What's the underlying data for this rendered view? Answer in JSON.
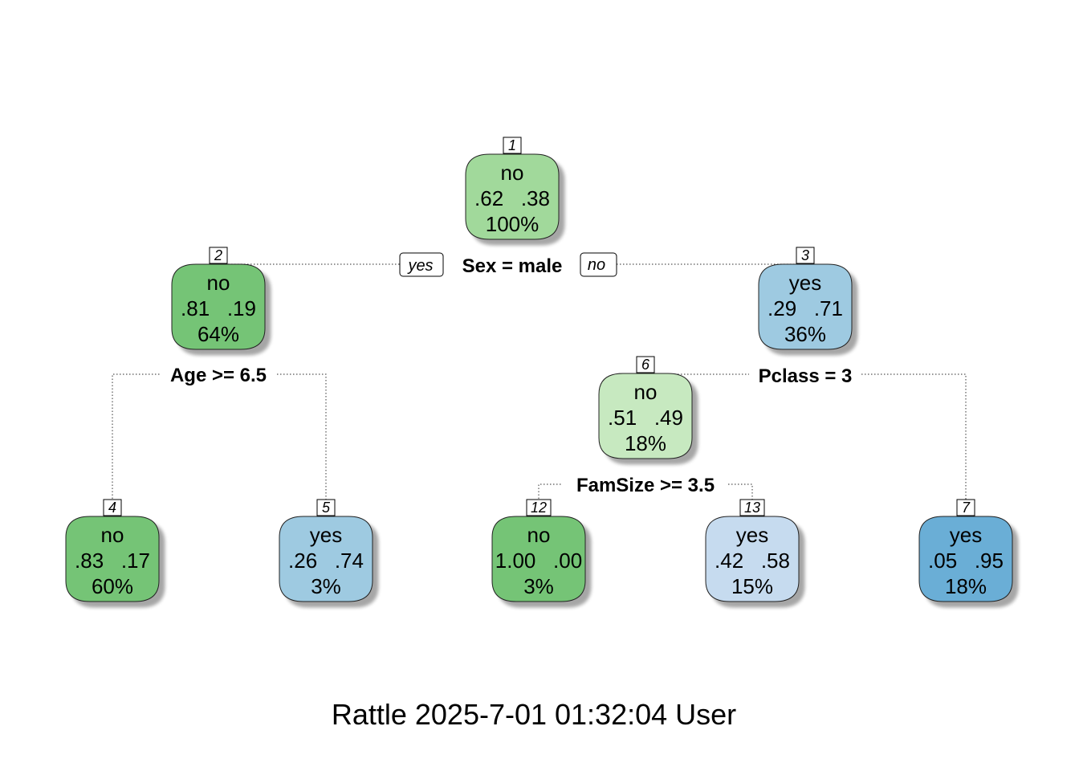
{
  "diagram": {
    "branch_labels": {
      "yes": "yes",
      "no": "no"
    },
    "nodes": [
      {
        "id": "1",
        "cls": "no",
        "probs": ".62   .38",
        "pct": "100%",
        "color": "#a1d99b",
        "split": "Sex = male"
      },
      {
        "id": "2",
        "cls": "no",
        "probs": ".81   .19",
        "pct": "64%",
        "color": "#74c476",
        "split": "Age >= 6.5"
      },
      {
        "id": "3",
        "cls": "yes",
        "probs": ".29   .71",
        "pct": "36%",
        "color": "#9ecae1",
        "split": "Pclass = 3"
      },
      {
        "id": "6",
        "cls": "no",
        "probs": ".51   .49",
        "pct": "18%",
        "color": "#c7e9c0",
        "split": "FamSize >= 3.5"
      },
      {
        "id": "4",
        "cls": "no",
        "probs": ".83   .17",
        "pct": "60%",
        "color": "#74c476"
      },
      {
        "id": "5",
        "cls": "yes",
        "probs": ".26   .74",
        "pct": "3%",
        "color": "#9ecae1"
      },
      {
        "id": "12",
        "cls": "no",
        "probs": "1.00   .00",
        "pct": "3%",
        "color": "#74c476"
      },
      {
        "id": "13",
        "cls": "yes",
        "probs": ".42   .58",
        "pct": "15%",
        "color": "#c6dbef"
      },
      {
        "id": "7",
        "cls": "yes",
        "probs": ".05   .95",
        "pct": "18%",
        "color": "#6baed6"
      }
    ]
  },
  "footer": "Rattle 2025-7-01 01:32:04 User"
}
